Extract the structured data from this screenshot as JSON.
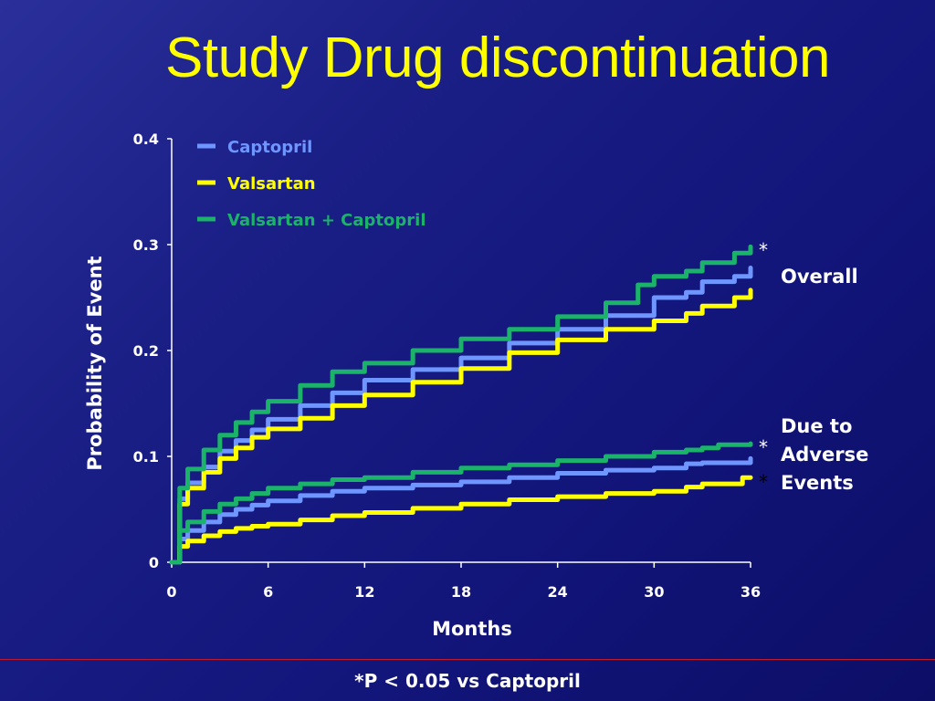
{
  "slide": {
    "title": "Study Drug discontinuation",
    "footnote": "*P < 0.05 vs Captopril",
    "annotations": {
      "overall": "Overall",
      "adverse_line1": "Due to",
      "adverse_line2": "Adverse",
      "adverse_line3": "Events",
      "star": "*"
    }
  },
  "colors": {
    "captopril": "#6f95ff",
    "valsartan": "#ffff00",
    "combo": "#1bb36a",
    "title": "#ffff00",
    "axis": "#ffffff"
  },
  "chart_data": {
    "type": "line",
    "xlabel": "Months",
    "ylabel": "Probability of Event",
    "xlim": [
      0,
      36
    ],
    "ylim": [
      0,
      0.4
    ],
    "xticks": [
      "0",
      "6",
      "12",
      "18",
      "24",
      "30",
      "36"
    ],
    "yticks": [
      "0",
      "0.1",
      "0.2",
      "0.3",
      "0.4"
    ],
    "legend": [
      "Captopril",
      "Valsartan",
      "Valsartan + Captopril"
    ],
    "legend_position": "top-left",
    "series": [
      {
        "name": "Captopril",
        "group": "Overall",
        "x": [
          0,
          0.5,
          1,
          2,
          3,
          4,
          5,
          6,
          8,
          10,
          12,
          15,
          18,
          21,
          24,
          27,
          30,
          32,
          33,
          35,
          36
        ],
        "y": [
          0,
          0.06,
          0.075,
          0.09,
          0.105,
          0.115,
          0.125,
          0.135,
          0.148,
          0.16,
          0.172,
          0.182,
          0.193,
          0.207,
          0.22,
          0.233,
          0.25,
          0.255,
          0.265,
          0.27,
          0.278
        ]
      },
      {
        "name": "Valsartan",
        "group": "Overall",
        "x": [
          0,
          0.5,
          1,
          2,
          3,
          4,
          5,
          6,
          8,
          10,
          12,
          15,
          18,
          21,
          24,
          27,
          30,
          32,
          33,
          35,
          36
        ],
        "y": [
          0,
          0.055,
          0.07,
          0.085,
          0.098,
          0.108,
          0.118,
          0.126,
          0.136,
          0.148,
          0.158,
          0.17,
          0.183,
          0.198,
          0.21,
          0.22,
          0.228,
          0.235,
          0.242,
          0.25,
          0.257
        ]
      },
      {
        "name": "Valsartan + Captopril",
        "group": "Overall",
        "x": [
          0,
          0.5,
          1,
          2,
          3,
          4,
          5,
          6,
          8,
          10,
          12,
          15,
          18,
          21,
          24,
          27,
          29,
          30,
          32,
          33,
          35,
          36
        ],
        "y": [
          0,
          0.07,
          0.088,
          0.106,
          0.12,
          0.132,
          0.142,
          0.152,
          0.167,
          0.18,
          0.188,
          0.2,
          0.211,
          0.22,
          0.232,
          0.245,
          0.262,
          0.27,
          0.275,
          0.283,
          0.292,
          0.298
        ]
      },
      {
        "name": "Captopril",
        "group": "Due to Adverse Events",
        "x": [
          0,
          0.5,
          1,
          2,
          3,
          4,
          5,
          6,
          8,
          10,
          12,
          15,
          18,
          21,
          24,
          27,
          30,
          32,
          33,
          35.5,
          36
        ],
        "y": [
          0,
          0.022,
          0.03,
          0.038,
          0.045,
          0.05,
          0.054,
          0.058,
          0.063,
          0.067,
          0.07,
          0.073,
          0.076,
          0.08,
          0.084,
          0.087,
          0.089,
          0.093,
          0.094,
          0.094,
          0.098
        ]
      },
      {
        "name": "Valsartan",
        "group": "Due to Adverse Events",
        "x": [
          0,
          0.5,
          1,
          2,
          3,
          4,
          5,
          6,
          8,
          10,
          12,
          15,
          18,
          21,
          24,
          27,
          30,
          32,
          33,
          35.5,
          36
        ],
        "y": [
          0,
          0.015,
          0.02,
          0.025,
          0.029,
          0.032,
          0.034,
          0.036,
          0.04,
          0.044,
          0.047,
          0.051,
          0.055,
          0.059,
          0.062,
          0.065,
          0.067,
          0.071,
          0.074,
          0.08,
          0.08
        ]
      },
      {
        "name": "Valsartan + Captopril",
        "group": "Due to Adverse Events",
        "x": [
          0,
          0.5,
          1,
          2,
          3,
          4,
          5,
          6,
          8,
          10,
          12,
          15,
          18,
          21,
          24,
          27,
          30,
          32,
          33,
          34,
          36
        ],
        "y": [
          0,
          0.03,
          0.038,
          0.048,
          0.055,
          0.06,
          0.065,
          0.07,
          0.074,
          0.078,
          0.08,
          0.085,
          0.089,
          0.092,
          0.096,
          0.1,
          0.104,
          0.106,
          0.108,
          0.111,
          0.112
        ]
      }
    ]
  }
}
